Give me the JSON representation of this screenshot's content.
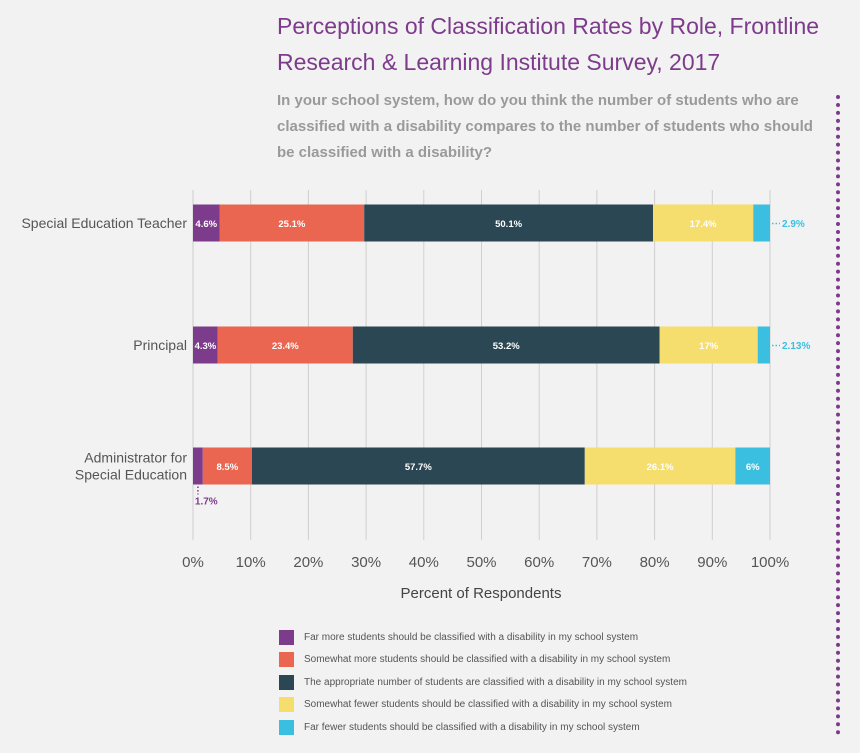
{
  "title": "Perceptions of Classification Rates by Role, Frontline Research & Learning Institute Survey, 2017",
  "subtitle": "In your school system, how do you think the number of students who are classified with a disability compares to the number of students who should be classified with a disability?",
  "chart_data": {
    "type": "bar",
    "orientation": "horizontal",
    "stacked": true,
    "categories": [
      "Special Education Teacher",
      "Principal",
      "Administrator for Special Education"
    ],
    "category_display": [
      [
        "Special Education Teacher"
      ],
      [
        "Principal"
      ],
      [
        "Administrator for",
        "Special Education"
      ]
    ],
    "series": [
      {
        "name": "Far more students should be classified with a disability in my school system",
        "color": "#7d3c8b",
        "values": [
          4.6,
          4.3,
          1.7
        ],
        "labels": [
          "4.6%",
          "4.3%",
          "1.7%"
        ]
      },
      {
        "name": "Somewhat more students should be classified with a disability in my school system",
        "color": "#ea6650",
        "values": [
          25.1,
          23.4,
          8.5
        ],
        "labels": [
          "25.1%",
          "23.4%",
          "8.5%"
        ]
      },
      {
        "name": "The appropriate number of students are classified with a disability in my school system",
        "color": "#2a4753",
        "values": [
          50.1,
          53.2,
          57.7
        ],
        "labels": [
          "50.1%",
          "53.2%",
          "57.7%"
        ]
      },
      {
        "name": "Somewhat fewer students should be classified with a disability in my school system",
        "color": "#f5de6e",
        "values": [
          17.4,
          17,
          26.1
        ],
        "labels": [
          "17.4%",
          "17%",
          "26.1%"
        ]
      },
      {
        "name": "Far fewer students should be classified with a disability in my school system",
        "color": "#3bbfe0",
        "values": [
          2.9,
          2.13,
          6
        ],
        "labels": [
          "2.9%",
          "2.13%",
          "6%"
        ]
      }
    ],
    "xlabel": "Percent of Respondents",
    "xlim": [
      0,
      100
    ],
    "ticks": [
      "0%",
      "10%",
      "20%",
      "30%",
      "40%",
      "50%",
      "60%",
      "70%",
      "80%",
      "90%",
      "100%"
    ],
    "grid": true,
    "legend": "bottom"
  }
}
